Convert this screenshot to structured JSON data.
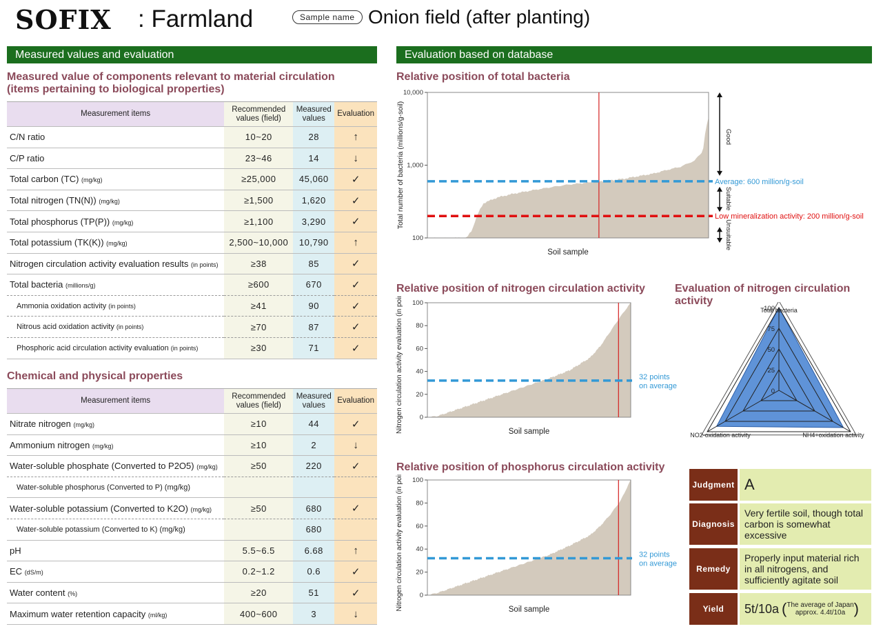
{
  "header": {
    "brand": "SOFIX",
    "title": ": Farmland",
    "sample_label": "Sample name",
    "sample_value": "Onion field (after planting)"
  },
  "left": {
    "section_title": "Measured values and evaluation",
    "bio_title_1": "Measured value of components relevant to material circulation",
    "bio_title_2": "(items pertaining to biological properties)",
    "chem_title": "Chemical and physical properties",
    "columns": {
      "item": "Measurement items",
      "rec_1": "Recommended",
      "rec_2": "values (field)",
      "meas_1": "Measured",
      "meas_2": "values",
      "eval": "Evaluation"
    },
    "bio_rows": [
      {
        "name": "C/N ratio",
        "unit": "",
        "rec": "10~20",
        "meas": "28",
        "eval": "↑"
      },
      {
        "name": "C/P ratio",
        "unit": "",
        "rec": "23~46",
        "meas": "14",
        "eval": "↓"
      },
      {
        "name": "Total carbon (TC)",
        "unit": "(mg/kg)",
        "rec": "≥25,000",
        "meas": "45,060",
        "eval": "✓"
      },
      {
        "name": "Total nitrogen (TN(N))",
        "unit": "(mg/kg)",
        "rec": "≥1,500",
        "meas": "1,620",
        "eval": "✓"
      },
      {
        "name": "Total phosphorus (TP(P))",
        "unit": "(mg/kg)",
        "rec": "≥1,100",
        "meas": "3,290",
        "eval": "✓"
      },
      {
        "name": "Total potassium (TK(K))",
        "unit": "(mg/kg)",
        "rec": "2,500~10,000",
        "meas": "10,790",
        "eval": "↑"
      },
      {
        "name": "Nitrogen circulation activity evaluation results",
        "unit": "(in points)",
        "rec": "≥38",
        "meas": "85",
        "eval": "✓"
      },
      {
        "name": "Total bacteria",
        "unit": "(millions/g)",
        "rec": "≥600",
        "meas": "670",
        "eval": "✓"
      },
      {
        "name": "Ammonia oxidation activity",
        "unit": "(in points)",
        "rec": "≥41",
        "meas": "90",
        "eval": "✓",
        "sub": true
      },
      {
        "name": "Nitrous acid oxidation activity",
        "unit": "(in points)",
        "rec": "≥70",
        "meas": "87",
        "eval": "✓",
        "sub": true
      },
      {
        "name": "Phosphoric acid circulation activity evaluation",
        "unit": "(in points)",
        "rec": "≥30",
        "meas": "71",
        "eval": "✓",
        "sub": true
      }
    ],
    "chem_rows": [
      {
        "name": "Nitrate nitrogen",
        "unit": "(mg/kg)",
        "rec": "≥10",
        "meas": "44",
        "eval": "✓"
      },
      {
        "name": "Ammonium nitrogen",
        "unit": "(mg/kg)",
        "rec": "≥10",
        "meas": "2",
        "eval": "↓"
      },
      {
        "name": "Water-soluble phosphate (Converted to P2O5)",
        "unit": "(mg/kg)",
        "rec": "≥50",
        "meas": "220",
        "eval": "✓"
      },
      {
        "name": "Water-soluble phosphorus (Converted to P) (mg/kg)",
        "unit": "",
        "rec": "",
        "meas": "",
        "eval": "",
        "sub": true
      },
      {
        "name": "Water-soluble potassium (Converted to K2O)",
        "unit": "(mg/kg)",
        "rec": "≥50",
        "meas": "680",
        "eval": "✓"
      },
      {
        "name": "Water-soluble potassium (Converted to K) (mg/kg)",
        "unit": "",
        "rec": "",
        "meas": "680",
        "eval": "",
        "sub": true
      },
      {
        "name": "pH",
        "unit": "",
        "rec": "5.5~6.5",
        "meas": "6.68",
        "eval": "↑"
      },
      {
        "name": "EC",
        "unit": "(dS/m)",
        "rec": "0.2~1.2",
        "meas": "0.6",
        "eval": "✓"
      },
      {
        "name": "Water content",
        "unit": "(%)",
        "rec": "≥20",
        "meas": "51",
        "eval": "✓"
      },
      {
        "name": "Maximum water retention capacity",
        "unit": "(ml/kg)",
        "rec": "400~600",
        "meas": "3",
        "eval": "↓"
      }
    ]
  },
  "right": {
    "section_title": "Evaluation based on database",
    "judgment": {
      "label": "Judgment",
      "value": "A"
    },
    "diagnosis": {
      "label": "Diagnosis",
      "value": "Very fertile soil, though total carbon is somewhat excessive"
    },
    "remedy": {
      "label": "Remedy",
      "value": "Properly input material rich in all nitrogens, and sufficiently agitate soil"
    },
    "yield": {
      "label": "Yield",
      "value": "5t/10a",
      "note_1": "The average of Japan",
      "note_2": "approx. 4.4t/10a"
    }
  },
  "chart_data": [
    {
      "type": "area",
      "title": "Relative position of total bacteria",
      "xlabel": "Soil sample",
      "ylabel": "Total number of bacteria (millions/g-soil)",
      "yscale": "log",
      "ylim": [
        100,
        10000
      ],
      "yticks": [
        "100",
        "1,000",
        "10,000"
      ],
      "curve_x": [
        0,
        0.14,
        0.16,
        0.2,
        0.25,
        0.3,
        0.4,
        0.5,
        0.6,
        0.7,
        0.8,
        0.9,
        0.95,
        0.98,
        1
      ],
      "curve_y": [
        100,
        100,
        130,
        300,
        360,
        400,
        470,
        540,
        590,
        650,
        760,
        950,
        1150,
        1550,
        4500
      ],
      "sample_position": 0.61,
      "lines": [
        {
          "label": "Average: 600 million/g-soil",
          "value": 600,
          "color": "#3399d6"
        },
        {
          "label": "Low mineralization activity: 200 million/g-soil",
          "value": 200,
          "color": "#e01010"
        }
      ],
      "bands": [
        {
          "label": "Good"
        },
        {
          "label": "Suitable"
        },
        {
          "label": "Unsuitable"
        }
      ]
    },
    {
      "type": "area",
      "title": "Relative position of nitrogen circulation activity",
      "xlabel": "Soil sample",
      "ylabel": "Nitrogen circulation activity evaluation (in points)",
      "ylim": [
        0,
        100
      ],
      "yticks": [
        0,
        20,
        40,
        60,
        80,
        100
      ],
      "curve_x": [
        0,
        0.05,
        0.1,
        0.2,
        0.3,
        0.4,
        0.5,
        0.6,
        0.7,
        0.8,
        0.85,
        0.9,
        0.95,
        1
      ],
      "curve_y": [
        0,
        1,
        4,
        10,
        16,
        22,
        28,
        34,
        41,
        52,
        62,
        75,
        88,
        100
      ],
      "sample_position": 0.94,
      "lines": [
        {
          "label_1": "32 points",
          "label_2": "on average",
          "value": 32,
          "color": "#3399d6"
        }
      ]
    },
    {
      "type": "area",
      "title": "Relative position of phosphorus circulation activity",
      "xlabel": "Soil sample",
      "ylabel": "Nitrogen circulation activity evaluation (in points)",
      "ylim": [
        0,
        100
      ],
      "yticks": [
        0,
        20,
        40,
        60,
        80,
        100
      ],
      "curve_x": [
        0,
        0.05,
        0.1,
        0.2,
        0.3,
        0.4,
        0.5,
        0.6,
        0.7,
        0.8,
        0.85,
        0.9,
        0.95,
        1
      ],
      "curve_y": [
        0,
        2,
        5,
        11,
        17,
        23,
        29,
        35,
        43,
        52,
        60,
        70,
        82,
        100
      ],
      "sample_position": 0.94,
      "lines": [
        {
          "label_1": "32 points",
          "label_2": "on average",
          "value": 32,
          "color": "#3399d6"
        }
      ]
    },
    {
      "type": "radar",
      "title": "Evaluation of nitrogen circulation activity",
      "axes": [
        "Total bacteria",
        "NO2-oxidation activity",
        "NH4+oxidation activity"
      ],
      "values": [
        100,
        87,
        90
      ],
      "ticks": [
        0,
        25,
        50,
        75,
        100
      ]
    }
  ]
}
